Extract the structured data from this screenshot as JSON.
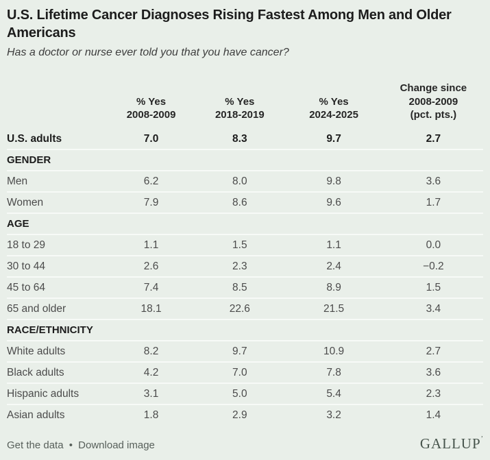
{
  "header": {
    "title": "U.S. Lifetime Cancer Diagnoses Rising Fastest Among Men and Older Americans",
    "subtitle": "Has a doctor or nurse ever told you that you have cancer?"
  },
  "table": {
    "columns": [
      "% Yes\n2008-2009",
      "% Yes\n2018-2019",
      "% Yes\n2024-2025",
      "Change since\n2008-2009\n(pct. pts.)"
    ],
    "rows": [
      {
        "type": "total",
        "label": "U.S. adults",
        "values": [
          "7.0",
          "8.3",
          "9.7",
          "2.7"
        ]
      },
      {
        "type": "section",
        "label": "GENDER"
      },
      {
        "type": "data",
        "label": "Men",
        "values": [
          "6.2",
          "8.0",
          "9.8",
          "3.6"
        ]
      },
      {
        "type": "data",
        "label": "Women",
        "values": [
          "7.9",
          "8.6",
          "9.6",
          "1.7"
        ]
      },
      {
        "type": "section",
        "label": "AGE"
      },
      {
        "type": "data",
        "label": "18 to 29",
        "values": [
          "1.1",
          "1.5",
          "1.1",
          "0.0"
        ]
      },
      {
        "type": "data",
        "label": "30 to 44",
        "values": [
          "2.6",
          "2.3",
          "2.4",
          "−0.2"
        ]
      },
      {
        "type": "data",
        "label": "45 to 64",
        "values": [
          "7.4",
          "8.5",
          "8.9",
          "1.5"
        ]
      },
      {
        "type": "data",
        "label": "65 and older",
        "values": [
          "18.1",
          "22.6",
          "21.5",
          "3.4"
        ]
      },
      {
        "type": "section",
        "label": "RACE/ETHNICITY"
      },
      {
        "type": "data",
        "label": "White adults",
        "values": [
          "8.2",
          "9.7",
          "10.9",
          "2.7"
        ]
      },
      {
        "type": "data",
        "label": "Black adults",
        "values": [
          "4.2",
          "7.0",
          "7.8",
          "3.6"
        ]
      },
      {
        "type": "data",
        "label": "Hispanic adults",
        "values": [
          "3.1",
          "5.0",
          "5.4",
          "2.3"
        ]
      },
      {
        "type": "data",
        "label": "Asian adults",
        "values": [
          "1.8",
          "2.9",
          "3.2",
          "1.4"
        ]
      }
    ]
  },
  "footer": {
    "get_data_label": "Get the data",
    "separator": "•",
    "download_label": "Download image",
    "logo": "GALLUP",
    "logo_mark": "’"
  },
  "colors": {
    "background": "#E9EFE9",
    "divider": "#F7FAF7",
    "text_dark": "#1C1C1C",
    "text_body": "#4B4B4B",
    "footer_text": "#575F5A",
    "logo_color": "#47544C"
  },
  "chart_data": {
    "type": "table",
    "title": "U.S. Lifetime Cancer Diagnoses Rising Fastest Among Men and Older Americans",
    "subtitle": "Has a doctor or nurse ever told you that you have cancer?",
    "columns": [
      "% Yes 2008-2009",
      "% Yes 2018-2019",
      "% Yes 2024-2025",
      "Change since 2008-2009 (pct. pts.)"
    ],
    "rows": [
      {
        "group": null,
        "label": "U.S. adults",
        "values": [
          7.0,
          8.3,
          9.7,
          2.7
        ]
      },
      {
        "group": "GENDER",
        "label": "Men",
        "values": [
          6.2,
          8.0,
          9.8,
          3.6
        ]
      },
      {
        "group": "GENDER",
        "label": "Women",
        "values": [
          7.9,
          8.6,
          9.6,
          1.7
        ]
      },
      {
        "group": "AGE",
        "label": "18 to 29",
        "values": [
          1.1,
          1.5,
          1.1,
          0.0
        ]
      },
      {
        "group": "AGE",
        "label": "30 to 44",
        "values": [
          2.6,
          2.3,
          2.4,
          -0.2
        ]
      },
      {
        "group": "AGE",
        "label": "45 to 64",
        "values": [
          7.4,
          8.5,
          8.9,
          1.5
        ]
      },
      {
        "group": "AGE",
        "label": "65 and older",
        "values": [
          18.1,
          22.6,
          21.5,
          3.4
        ]
      },
      {
        "group": "RACE/ETHNICITY",
        "label": "White adults",
        "values": [
          8.2,
          9.7,
          10.9,
          2.7
        ]
      },
      {
        "group": "RACE/ETHNICITY",
        "label": "Black adults",
        "values": [
          4.2,
          7.0,
          7.8,
          3.6
        ]
      },
      {
        "group": "RACE/ETHNICITY",
        "label": "Hispanic adults",
        "values": [
          3.1,
          5.0,
          5.4,
          2.3
        ]
      },
      {
        "group": "RACE/ETHNICITY",
        "label": "Asian adults",
        "values": [
          1.8,
          2.9,
          3.2,
          1.4
        ]
      }
    ],
    "source": "GALLUP"
  }
}
